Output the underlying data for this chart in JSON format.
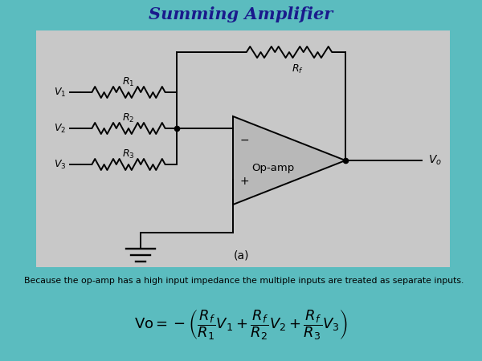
{
  "title": "Summing Amplifier",
  "title_color": "#1a1a8c",
  "bg_color": "#5bbcbf",
  "circuit_bg": "#c8c8c8",
  "lc": "#000000",
  "lw": 1.4,
  "bottom_text": "Because the op-amp has a high input impedance the multiple inputs are treated as separate inputs.",
  "label_a": "(a)",
  "opamp_label": "Op-amp",
  "figw": 6.0,
  "figh": 4.5,
  "dpi": 100
}
